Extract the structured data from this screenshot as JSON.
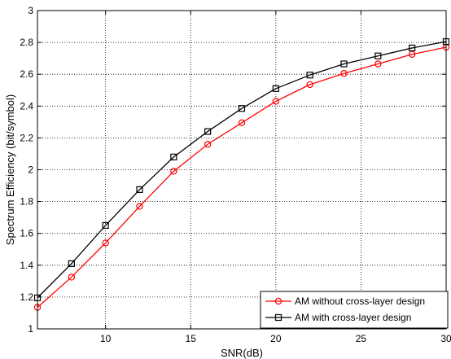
{
  "chart_data": {
    "type": "line",
    "title": "",
    "xlabel": "SNR(dB)",
    "ylabel": "Spectrum Efficiency (bit/symbol)",
    "xlim": [
      6,
      30
    ],
    "ylim": [
      1,
      3
    ],
    "xticks": [
      10,
      15,
      20,
      25,
      30
    ],
    "yticks": [
      1,
      1.2,
      1.4,
      1.6,
      1.8,
      2,
      2.2,
      2.4,
      2.6,
      2.8,
      3
    ],
    "xtick_labels": [
      "10",
      "15",
      "20",
      "25",
      "30"
    ],
    "ytick_labels": [
      "1",
      "1.2",
      "1.4",
      "1.6",
      "1.8",
      "2",
      "2.2",
      "2.4",
      "2.6",
      "2.8",
      "3"
    ],
    "grid": true,
    "legend_position": "bottom-right",
    "x": [
      6,
      8,
      10,
      12,
      14,
      16,
      18,
      20,
      22,
      24,
      26,
      28,
      30
    ],
    "series": [
      {
        "name": "AM without cross-layer design",
        "color": "#ff0000",
        "marker": "circle",
        "values": [
          1.135,
          1.325,
          1.54,
          1.77,
          1.99,
          2.16,
          2.295,
          2.43,
          2.535,
          2.605,
          2.665,
          2.725,
          2.77
        ]
      },
      {
        "name": "AM with cross-layer design",
        "color": "#000000",
        "marker": "square",
        "values": [
          1.195,
          1.41,
          1.65,
          1.875,
          2.08,
          2.24,
          2.385,
          2.51,
          2.595,
          2.665,
          2.715,
          2.765,
          2.805
        ]
      }
    ]
  }
}
